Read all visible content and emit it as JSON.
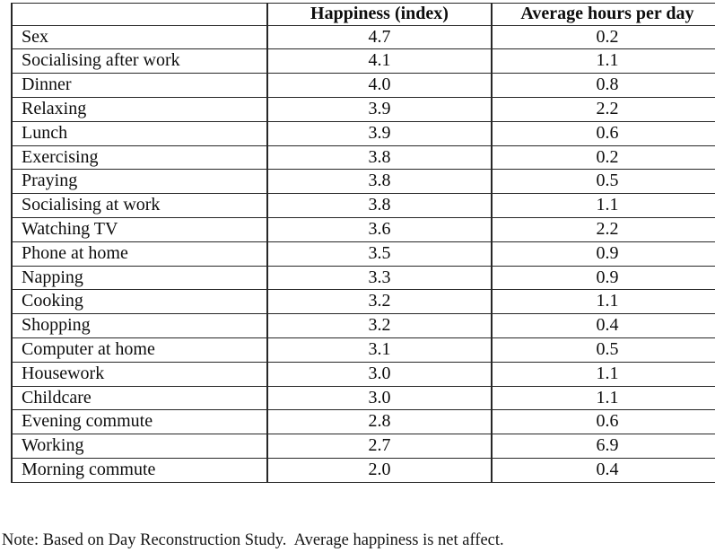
{
  "table": {
    "headers": [
      "",
      "Happiness (index)",
      "Average hours per day"
    ],
    "rows": [
      {
        "activity": "Sex",
        "happiness": "4.7",
        "hours": "0.2"
      },
      {
        "activity": "Socialising after work",
        "happiness": "4.1",
        "hours": "1.1"
      },
      {
        "activity": "Dinner",
        "happiness": "4.0",
        "hours": "0.8"
      },
      {
        "activity": "Relaxing",
        "happiness": "3.9",
        "hours": "2.2"
      },
      {
        "activity": "Lunch",
        "happiness": "3.9",
        "hours": "0.6"
      },
      {
        "activity": "Exercising",
        "happiness": "3.8",
        "hours": "0.2"
      },
      {
        "activity": "Praying",
        "happiness": "3.8",
        "hours": "0.5"
      },
      {
        "activity": "Socialising at work",
        "happiness": "3.8",
        "hours": "1.1"
      },
      {
        "activity": "Watching TV",
        "happiness": "3.6",
        "hours": "2.2"
      },
      {
        "activity": "Phone at home",
        "happiness": "3.5",
        "hours": "0.9"
      },
      {
        "activity": "Napping",
        "happiness": "3.3",
        "hours": "0.9"
      },
      {
        "activity": "Cooking",
        "happiness": "3.2",
        "hours": "1.1"
      },
      {
        "activity": "Shopping",
        "happiness": "3.2",
        "hours": "0.4"
      },
      {
        "activity": "Computer at home",
        "happiness": "3.1",
        "hours": "0.5"
      },
      {
        "activity": "Housework",
        "happiness": "3.0",
        "hours": "1.1"
      },
      {
        "activity": "Childcare",
        "happiness": "3.0",
        "hours": "1.1"
      },
      {
        "activity": "Evening commute",
        "happiness": "2.8",
        "hours": "0.6"
      },
      {
        "activity": "Working",
        "happiness": "2.7",
        "hours": "6.9"
      },
      {
        "activity": "Morning commute",
        "happiness": "2.0",
        "hours": "0.4"
      }
    ]
  },
  "note": "Note: Based on Day Reconstruction Study.  Average happiness is net affect.",
  "colors": {
    "background": "#ffffff",
    "border": "#272727",
    "text": "#0d0d0d"
  }
}
